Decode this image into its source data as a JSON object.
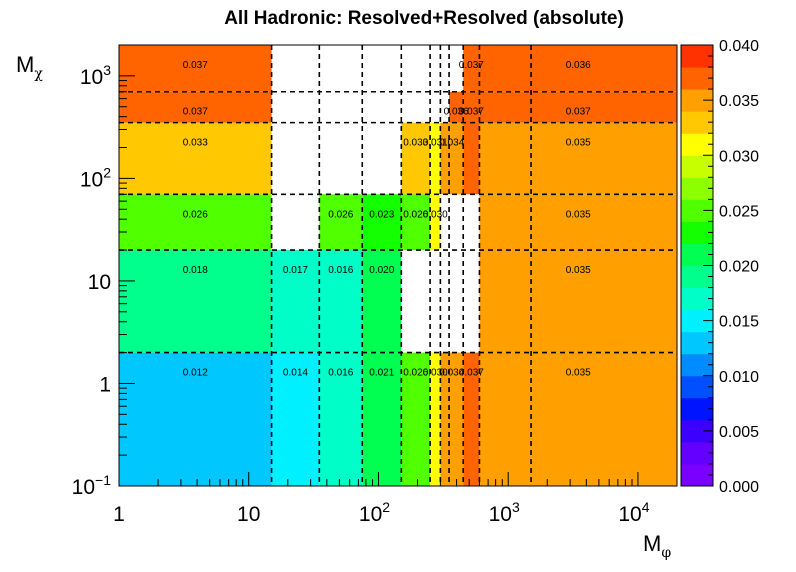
{
  "chart_data": {
    "type": "heatmap",
    "title": "All Hadronic: Resolved+Resolved (absolute)",
    "xlabel": {
      "base": "M",
      "sub": "φ"
    },
    "ylabel": {
      "base": "M",
      "sub": "χ"
    },
    "x_scale": "log",
    "y_scale": "log",
    "xlim": [
      1,
      20000
    ],
    "ylim": [
      0.1,
      2000
    ],
    "x_ticks": [
      {
        "value": 1,
        "base": "1",
        "exp": ""
      },
      {
        "value": 10,
        "base": "10",
        "exp": ""
      },
      {
        "value": 100,
        "base": "10",
        "exp": "2"
      },
      {
        "value": 1000,
        "base": "10",
        "exp": "3"
      },
      {
        "value": 10000,
        "base": "10",
        "exp": "4"
      }
    ],
    "y_ticks": [
      {
        "value": 0.1,
        "base": "10",
        "exp": "−1"
      },
      {
        "value": 1,
        "base": "1",
        "exp": ""
      },
      {
        "value": 10,
        "base": "10",
        "exp": ""
      },
      {
        "value": 100,
        "base": "10",
        "exp": "2"
      },
      {
        "value": 1000,
        "base": "10",
        "exp": "3"
      }
    ],
    "x_bin_edges": [
      1,
      15,
      35,
      75,
      150,
      250,
      300,
      350,
      450,
      600,
      1500,
      20000
    ],
    "y_bin_edges": [
      0.1,
      2,
      20,
      70,
      350,
      700,
      2000
    ],
    "cells": [
      {
        "x": [
          0,
          1
        ],
        "y": [
          0,
          1
        ],
        "value": 0.012,
        "label": "0.012"
      },
      {
        "x": [
          1,
          2
        ],
        "y": [
          0,
          1
        ],
        "value": 0.014,
        "label": "0.014"
      },
      {
        "x": [
          2,
          3
        ],
        "y": [
          0,
          1
        ],
        "value": 0.016,
        "label": "0.016"
      },
      {
        "x": [
          3,
          4
        ],
        "y": [
          0,
          1
        ],
        "value": 0.021,
        "label": "0.021"
      },
      {
        "x": [
          4,
          5
        ],
        "y": [
          0,
          1
        ],
        "value": 0.026,
        "label": "0.026"
      },
      {
        "x": [
          5,
          6
        ],
        "y": [
          0,
          1
        ],
        "value": 0.03,
        "label": "0.030"
      },
      {
        "x": [
          6,
          8
        ],
        "y": [
          0,
          1
        ],
        "value": 0.034,
        "label": "0.034"
      },
      {
        "x": [
          8,
          9
        ],
        "y": [
          0,
          1
        ],
        "value": 0.037,
        "label": "0.037"
      },
      {
        "x": [
          9,
          11
        ],
        "y": [
          0,
          1
        ],
        "value": 0.035,
        "label": "0.035"
      },
      {
        "x": [
          0,
          1
        ],
        "y": [
          1,
          2
        ],
        "value": 0.018,
        "label": "0.018"
      },
      {
        "x": [
          1,
          2
        ],
        "y": [
          1,
          2
        ],
        "value": 0.017,
        "label": "0.017"
      },
      {
        "x": [
          2,
          3
        ],
        "y": [
          1,
          2
        ],
        "value": 0.016,
        "label": "0.016"
      },
      {
        "x": [
          3,
          4
        ],
        "y": [
          1,
          2
        ],
        "value": 0.02,
        "label": "0.020"
      },
      {
        "x": [
          9,
          11
        ],
        "y": [
          1,
          2
        ],
        "value": 0.035,
        "label": "0.035"
      },
      {
        "x": [
          0,
          1
        ],
        "y": [
          2,
          3
        ],
        "value": 0.026,
        "label": "0.026"
      },
      {
        "x": [
          2,
          3
        ],
        "y": [
          2,
          3
        ],
        "value": 0.026,
        "label": "0.026"
      },
      {
        "x": [
          3,
          4
        ],
        "y": [
          2,
          3
        ],
        "value": 0.023,
        "label": "0.023"
      },
      {
        "x": [
          4,
          5
        ],
        "y": [
          2,
          3
        ],
        "value": 0.026,
        "label": "0.026"
      },
      {
        "x": [
          5,
          6
        ],
        "y": [
          2,
          3
        ],
        "value": 0.03,
        "label": "0.030"
      },
      {
        "x": [
          9,
          11
        ],
        "y": [
          2,
          3
        ],
        "value": 0.035,
        "label": "0.035"
      },
      {
        "x": [
          0,
          1
        ],
        "y": [
          3,
          4
        ],
        "value": 0.033,
        "label": "0.033"
      },
      {
        "x": [
          4,
          5
        ],
        "y": [
          3,
          4
        ],
        "value": 0.033,
        "label": "0.033"
      },
      {
        "x": [
          5,
          6
        ],
        "y": [
          3,
          4
        ],
        "value": 0.031,
        "label": "0.031"
      },
      {
        "x": [
          6,
          8
        ],
        "y": [
          3,
          4
        ],
        "value": 0.034,
        "label": "0.034"
      },
      {
        "x": [
          8,
          9
        ],
        "y": [
          3,
          5
        ],
        "value": 0.037,
        "label": "0.037"
      },
      {
        "x": [
          9,
          11
        ],
        "y": [
          3,
          4
        ],
        "value": 0.035,
        "label": "0.035"
      },
      {
        "x": [
          0,
          1
        ],
        "y": [
          4,
          5
        ],
        "value": 0.037,
        "label": "0.037"
      },
      {
        "x": [
          7,
          8
        ],
        "y": [
          4,
          5
        ],
        "value": 0.036,
        "label": "0.036"
      },
      {
        "x": [
          9,
          11
        ],
        "y": [
          4,
          5
        ],
        "value": 0.037,
        "label": "0.037"
      },
      {
        "x": [
          0,
          1
        ],
        "y": [
          5,
          6
        ],
        "value": 0.037,
        "label": "0.037"
      },
      {
        "x": [
          8,
          9
        ],
        "y": [
          5,
          6
        ],
        "value": 0.037,
        "label": "0.037"
      },
      {
        "x": [
          9,
          11
        ],
        "y": [
          5,
          6
        ],
        "value": 0.036,
        "label": "0.036"
      }
    ],
    "colorbar": {
      "min": 0.0,
      "max": 0.04,
      "ticks": [
        "0.000",
        "0.005",
        "0.010",
        "0.015",
        "0.020",
        "0.025",
        "0.030",
        "0.035",
        "0.040"
      ],
      "colors": [
        "#7a00ff",
        "#6400ff",
        "#3c00ff",
        "#0014ff",
        "#0050ff",
        "#008cff",
        "#00c8ff",
        "#00f0ff",
        "#00ffc8",
        "#00ff8c",
        "#00ff50",
        "#14ff00",
        "#50ff00",
        "#8cff00",
        "#c8ff00",
        "#ffff00",
        "#ffc800",
        "#ffa000",
        "#ff6400",
        "#ff3200"
      ]
    }
  }
}
